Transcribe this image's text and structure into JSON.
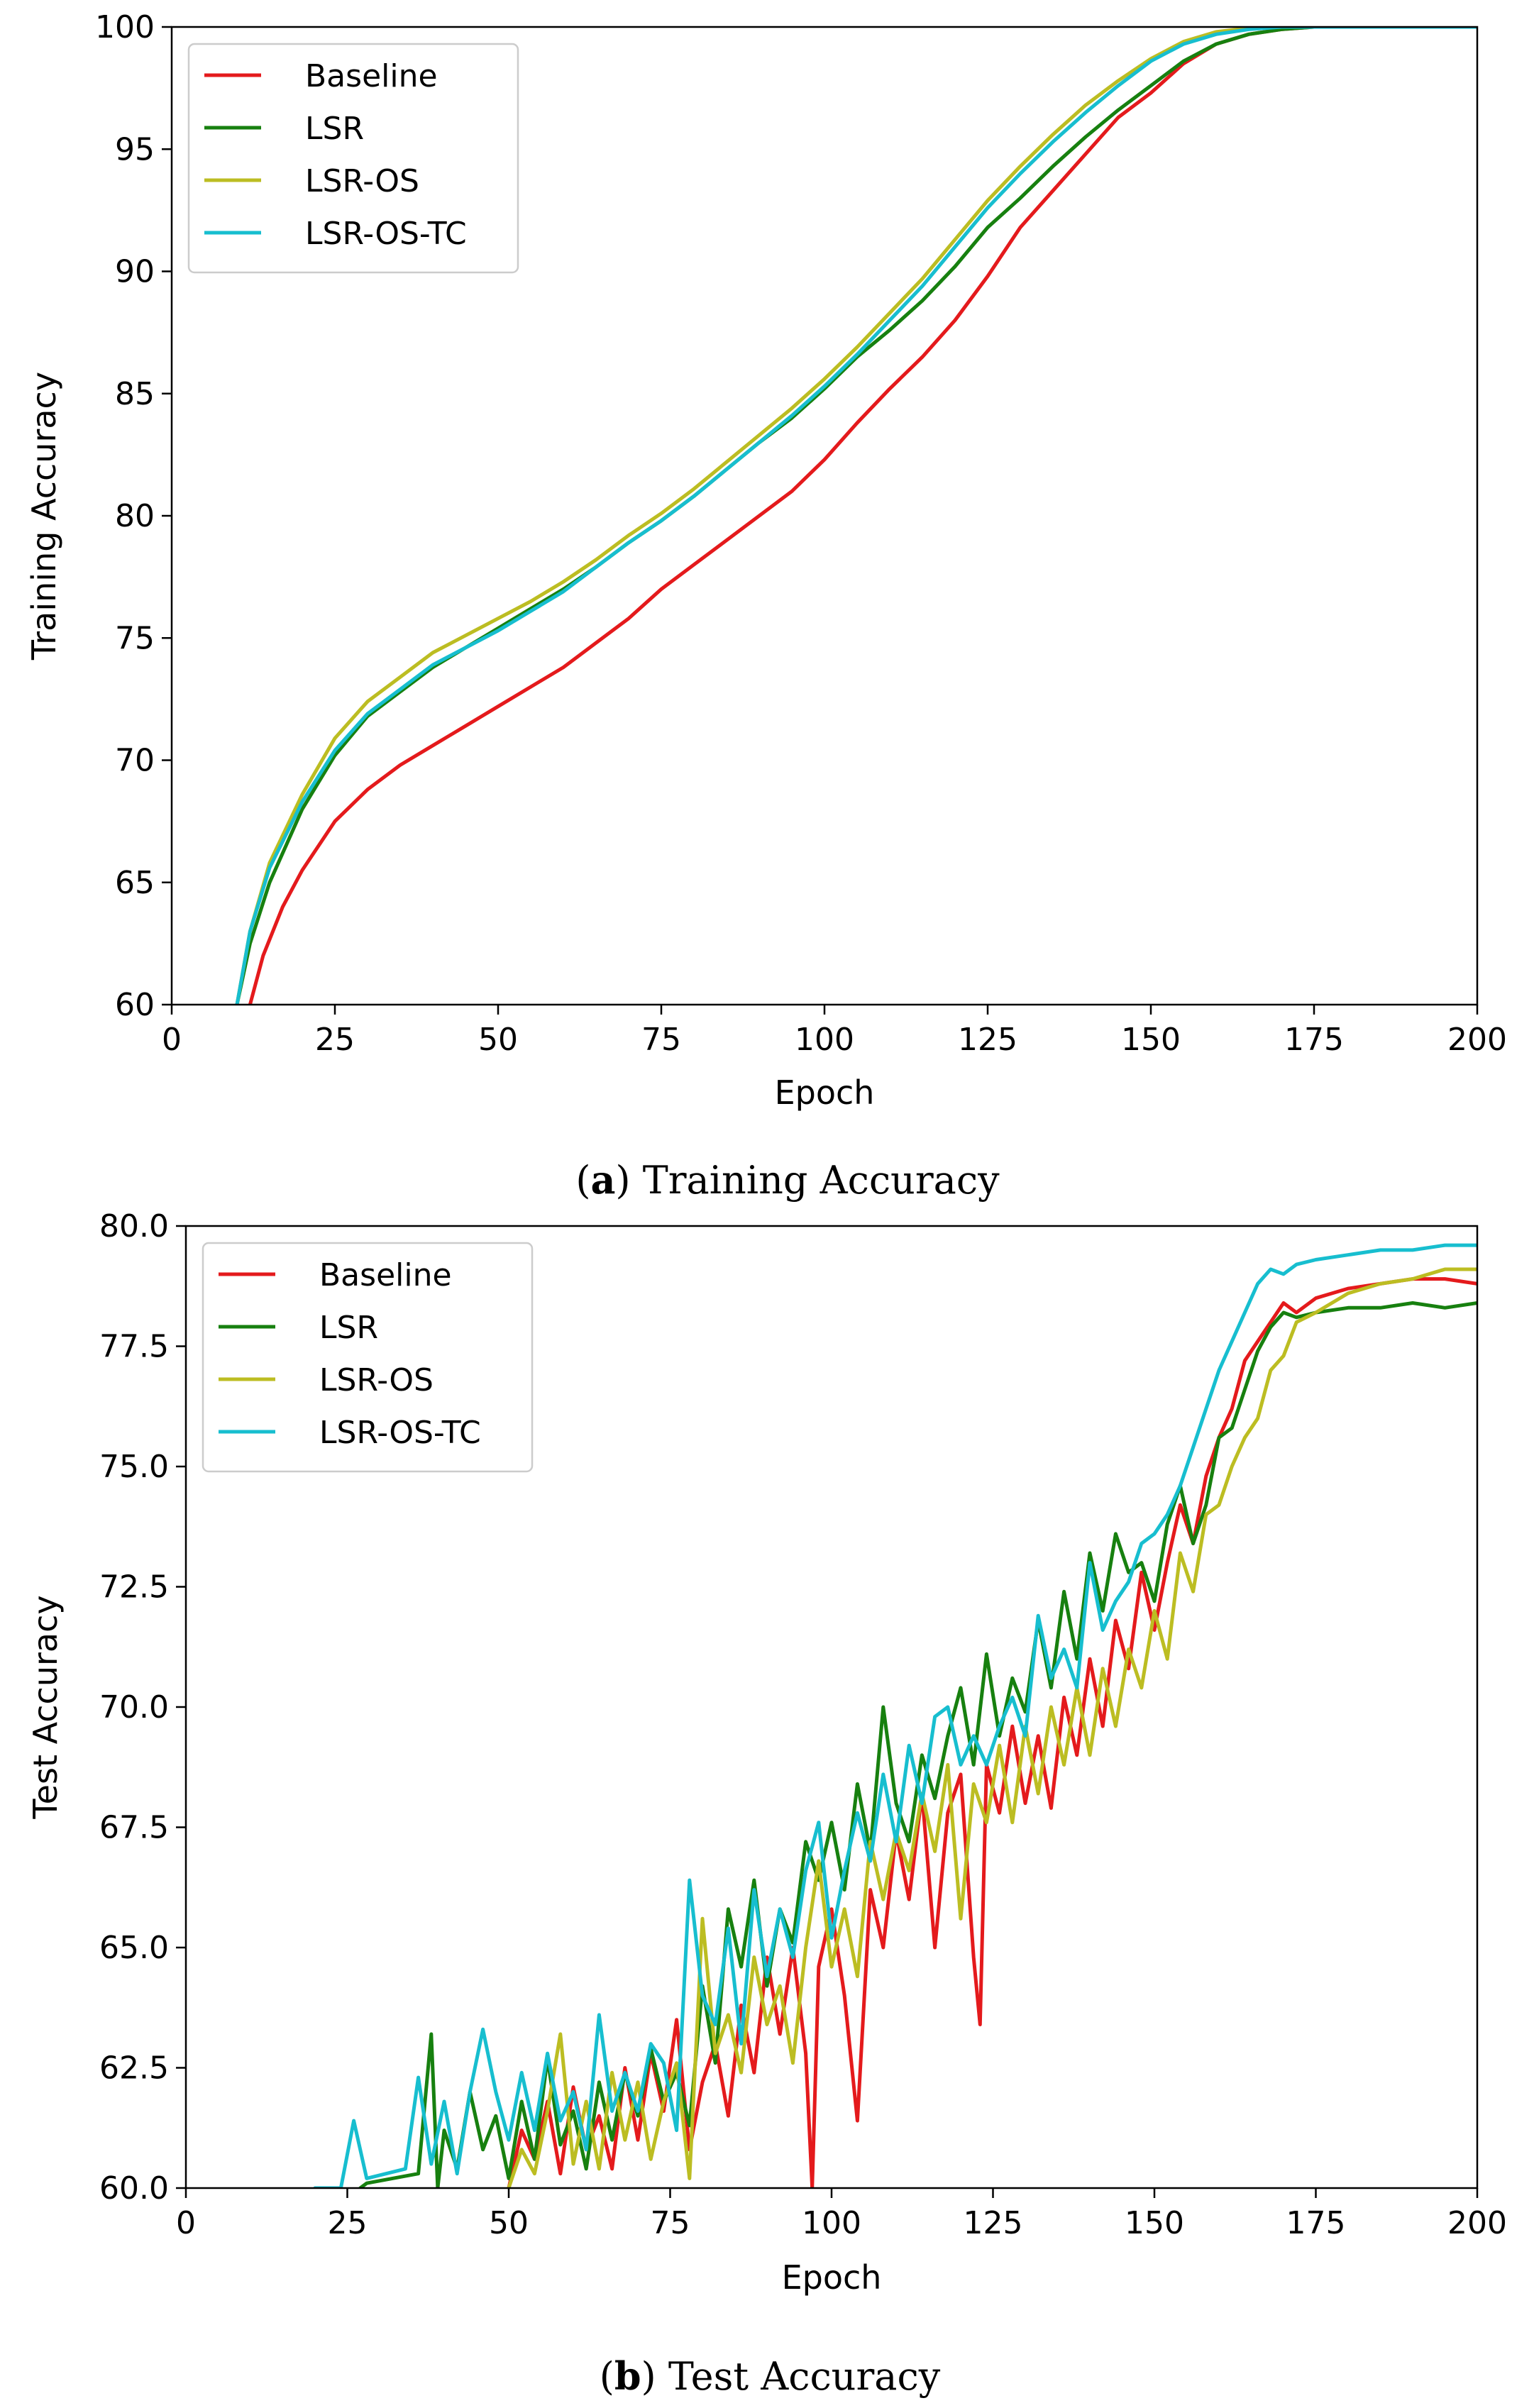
{
  "chart_data": [
    {
      "id": "a",
      "type": "line",
      "caption_letter": "a",
      "caption_text": "Training Accuracy",
      "xlabel": "Epoch",
      "ylabel": "Training Accuracy",
      "xlim": [
        0,
        200
      ],
      "ylim": [
        60,
        100
      ],
      "xticks": [
        "0",
        "25",
        "50",
        "75",
        "100",
        "125",
        "150",
        "175",
        "200"
      ],
      "yticks": [
        "60",
        "65",
        "70",
        "75",
        "80",
        "85",
        "90",
        "95",
        "100"
      ],
      "legend_position": "upper-left",
      "series": [
        {
          "name": "Baseline",
          "color": "#e41a1c",
          "x": [
            12,
            14,
            17,
            20,
            25,
            30,
            35,
            40,
            45,
            50,
            55,
            60,
            65,
            70,
            75,
            80,
            85,
            90,
            95,
            100,
            105,
            110,
            115,
            120,
            125,
            130,
            135,
            140,
            145,
            150,
            155,
            160,
            165,
            170,
            175,
            185,
            200
          ],
          "y": [
            60.0,
            62.0,
            64.0,
            65.5,
            67.5,
            68.8,
            69.8,
            70.6,
            71.4,
            72.2,
            73.0,
            73.8,
            74.8,
            75.8,
            77.0,
            78.0,
            79.0,
            80.0,
            81.0,
            82.3,
            83.8,
            85.2,
            86.5,
            88.0,
            89.8,
            91.8,
            93.3,
            94.8,
            96.3,
            97.3,
            98.5,
            99.3,
            99.7,
            99.9,
            100.0,
            100.0,
            100.0
          ]
        },
        {
          "name": "LSR",
          "color": "#17800f",
          "x": [
            10,
            12,
            15,
            20,
            25,
            30,
            35,
            40,
            45,
            50,
            55,
            60,
            65,
            70,
            75,
            80,
            85,
            90,
            95,
            100,
            105,
            110,
            115,
            120,
            125,
            130,
            135,
            140,
            145,
            150,
            155,
            160,
            165,
            170,
            175,
            185,
            200
          ],
          "y": [
            60.0,
            62.5,
            65.0,
            68.0,
            70.2,
            71.8,
            72.8,
            73.8,
            74.6,
            75.4,
            76.2,
            77.0,
            77.9,
            78.9,
            79.8,
            80.8,
            81.9,
            83.0,
            84.0,
            85.2,
            86.5,
            87.6,
            88.8,
            90.2,
            91.8,
            93.0,
            94.3,
            95.5,
            96.6,
            97.6,
            98.6,
            99.3,
            99.7,
            99.9,
            100.0,
            100.0,
            100.0
          ]
        },
        {
          "name": "LSR-OS",
          "color": "#bcbd22",
          "x": [
            10,
            12,
            15,
            20,
            25,
            30,
            35,
            40,
            45,
            50,
            55,
            60,
            65,
            70,
            75,
            80,
            85,
            90,
            95,
            100,
            105,
            110,
            115,
            120,
            125,
            130,
            135,
            140,
            145,
            150,
            155,
            160,
            165,
            170,
            175,
            185,
            200
          ],
          "y": [
            60.0,
            63.0,
            65.8,
            68.6,
            70.9,
            72.4,
            73.4,
            74.4,
            75.1,
            75.8,
            76.5,
            77.3,
            78.2,
            79.2,
            80.1,
            81.1,
            82.2,
            83.3,
            84.4,
            85.6,
            86.9,
            88.3,
            89.7,
            91.3,
            92.9,
            94.3,
            95.6,
            96.8,
            97.8,
            98.7,
            99.4,
            99.8,
            99.95,
            100.0,
            100.0,
            100.0,
            100.0
          ]
        },
        {
          "name": "LSR-OS-TC",
          "color": "#17becf",
          "x": [
            10,
            12,
            15,
            20,
            25,
            30,
            35,
            40,
            45,
            50,
            55,
            60,
            65,
            70,
            75,
            80,
            85,
            90,
            95,
            100,
            105,
            110,
            115,
            120,
            125,
            130,
            135,
            140,
            145,
            150,
            155,
            160,
            165,
            170,
            175,
            185,
            200
          ],
          "y": [
            60.0,
            63.0,
            65.6,
            68.3,
            70.4,
            71.9,
            72.9,
            73.9,
            74.6,
            75.3,
            76.1,
            76.9,
            77.9,
            78.9,
            79.8,
            80.8,
            81.9,
            83.0,
            84.1,
            85.3,
            86.6,
            88.0,
            89.4,
            91.0,
            92.6,
            94.0,
            95.3,
            96.5,
            97.6,
            98.6,
            99.3,
            99.7,
            99.9,
            100.0,
            100.0,
            100.0,
            100.0
          ]
        }
      ]
    },
    {
      "id": "b",
      "type": "line",
      "caption_letter": "b",
      "caption_text": "Test Accuracy",
      "xlabel": "Epoch",
      "ylabel": "Test Accuracy",
      "xlim": [
        0,
        200
      ],
      "ylim": [
        60,
        80
      ],
      "xticks": [
        "0",
        "25",
        "50",
        "75",
        "100",
        "125",
        "150",
        "175",
        "200"
      ],
      "yticks": [
        "60.0",
        "62.5",
        "65.0",
        "67.5",
        "70.0",
        "72.5",
        "75.0",
        "77.5",
        "80.0"
      ],
      "legend_position": "upper-left",
      "series": [
        {
          "name": "Baseline",
          "color": "#e41a1c",
          "x": [
            50,
            52,
            54,
            56,
            58,
            60,
            62,
            64,
            66,
            68,
            70,
            72,
            74,
            76,
            78,
            80,
            82,
            84,
            86,
            88,
            90,
            92,
            94,
            96,
            97,
            98,
            100,
            102,
            104,
            106,
            108,
            110,
            112,
            114,
            116,
            118,
            120,
            122,
            123,
            124,
            126,
            128,
            130,
            132,
            134,
            136,
            138,
            140,
            142,
            144,
            146,
            148,
            150,
            152,
            154,
            156,
            158,
            160,
            162,
            164,
            166,
            168,
            170,
            172,
            175,
            180,
            185,
            190,
            195,
            200
          ],
          "y": [
            60.0,
            61.2,
            60.6,
            61.8,
            60.3,
            62.1,
            60.8,
            61.5,
            60.4,
            62.5,
            61.0,
            62.8,
            61.6,
            63.5,
            60.8,
            62.2,
            63.0,
            61.5,
            63.8,
            62.4,
            64.8,
            63.2,
            65.0,
            62.8,
            60.0,
            64.6,
            65.8,
            64.0,
            61.4,
            66.2,
            65.0,
            67.4,
            66.0,
            68.2,
            65.0,
            67.8,
            68.6,
            64.8,
            63.4,
            68.8,
            67.8,
            69.6,
            68.0,
            69.4,
            67.9,
            70.2,
            69.0,
            71.0,
            69.6,
            71.8,
            70.8,
            72.8,
            71.6,
            73.0,
            74.2,
            73.4,
            74.8,
            75.6,
            76.2,
            77.2,
            77.6,
            78.0,
            78.4,
            78.2,
            78.5,
            78.7,
            78.8,
            78.9,
            78.9,
            78.8
          ]
        },
        {
          "name": "LSR",
          "color": "#17800f",
          "x": [
            27,
            28,
            36,
            38,
            39,
            40,
            42,
            44,
            46,
            48,
            50,
            52,
            54,
            56,
            58,
            60,
            62,
            64,
            66,
            68,
            70,
            72,
            74,
            76,
            78,
            80,
            82,
            84,
            86,
            88,
            90,
            92,
            94,
            96,
            98,
            100,
            102,
            104,
            106,
            108,
            110,
            112,
            114,
            116,
            118,
            120,
            122,
            124,
            126,
            128,
            130,
            132,
            134,
            136,
            138,
            140,
            142,
            144,
            146,
            148,
            150,
            152,
            154,
            156,
            158,
            160,
            162,
            164,
            166,
            168,
            170,
            172,
            175,
            180,
            185,
            190,
            195,
            200
          ],
          "y": [
            60.0,
            60.1,
            60.3,
            63.2,
            60.0,
            61.2,
            60.4,
            62.0,
            60.8,
            61.5,
            60.2,
            61.8,
            60.6,
            62.7,
            60.9,
            61.6,
            60.4,
            62.2,
            61.0,
            62.4,
            61.5,
            62.9,
            61.8,
            62.4,
            61.3,
            64.2,
            62.6,
            65.8,
            64.6,
            66.4,
            64.2,
            65.8,
            65.1,
            67.2,
            66.4,
            67.6,
            66.2,
            68.4,
            67.0,
            70.0,
            68.0,
            67.2,
            69.0,
            68.1,
            69.4,
            70.4,
            68.8,
            71.1,
            69.4,
            70.6,
            69.9,
            71.8,
            70.4,
            72.4,
            71.0,
            73.2,
            72.0,
            73.6,
            72.8,
            73.0,
            72.2,
            73.8,
            74.6,
            73.4,
            74.2,
            75.6,
            75.8,
            76.6,
            77.4,
            77.9,
            78.2,
            78.1,
            78.2,
            78.3,
            78.3,
            78.4,
            78.3,
            78.4
          ]
        },
        {
          "name": "LSR-OS",
          "color": "#bcbd22",
          "x": [
            50,
            52,
            54,
            56,
            58,
            60,
            62,
            64,
            66,
            68,
            70,
            72,
            74,
            76,
            78,
            80,
            82,
            84,
            86,
            88,
            90,
            92,
            94,
            96,
            98,
            100,
            102,
            104,
            106,
            108,
            110,
            112,
            114,
            116,
            118,
            120,
            122,
            124,
            126,
            128,
            130,
            132,
            134,
            136,
            138,
            140,
            142,
            144,
            146,
            148,
            150,
            152,
            154,
            156,
            158,
            160,
            162,
            164,
            166,
            168,
            170,
            172,
            175,
            180,
            185,
            190,
            195,
            200
          ],
          "y": [
            60.0,
            60.8,
            60.3,
            61.6,
            63.2,
            60.5,
            61.8,
            60.4,
            62.4,
            61.0,
            62.2,
            60.6,
            61.8,
            62.6,
            60.2,
            65.6,
            62.8,
            63.6,
            62.4,
            64.8,
            63.4,
            64.2,
            62.6,
            65.0,
            66.8,
            64.6,
            65.8,
            64.4,
            67.2,
            66.0,
            67.4,
            66.6,
            68.2,
            67.0,
            68.8,
            65.6,
            68.4,
            67.6,
            69.2,
            67.6,
            69.6,
            68.2,
            70.0,
            68.8,
            70.4,
            69.0,
            70.8,
            69.6,
            71.2,
            70.4,
            72.0,
            71.0,
            73.2,
            72.4,
            74.0,
            74.2,
            75.0,
            75.6,
            76.0,
            77.0,
            77.3,
            78.0,
            78.2,
            78.6,
            78.8,
            78.9,
            79.1,
            79.1
          ]
        },
        {
          "name": "LSR-OS-TC",
          "color": "#17becf",
          "x": [
            20,
            24,
            26,
            28,
            34,
            36,
            38,
            40,
            42,
            44,
            46,
            48,
            50,
            52,
            54,
            56,
            58,
            60,
            62,
            64,
            66,
            68,
            70,
            72,
            74,
            76,
            78,
            80,
            82,
            84,
            86,
            88,
            90,
            92,
            94,
            96,
            98,
            100,
            102,
            104,
            106,
            108,
            110,
            112,
            114,
            116,
            118,
            120,
            122,
            124,
            126,
            128,
            130,
            132,
            134,
            136,
            138,
            140,
            142,
            144,
            146,
            148,
            150,
            152,
            154,
            156,
            158,
            160,
            162,
            164,
            166,
            168,
            170,
            172,
            175,
            180,
            185,
            190,
            195,
            200
          ],
          "y": [
            60.0,
            60.0,
            61.4,
            60.2,
            60.4,
            62.3,
            60.5,
            61.8,
            60.3,
            62.0,
            63.3,
            62.0,
            61.0,
            62.4,
            61.2,
            62.8,
            61.4,
            62.0,
            60.8,
            63.6,
            61.6,
            62.4,
            61.6,
            63.0,
            62.6,
            61.2,
            66.4,
            64.0,
            63.4,
            65.4,
            63.0,
            66.2,
            64.4,
            65.8,
            64.8,
            66.6,
            67.6,
            65.2,
            66.6,
            67.8,
            66.8,
            68.6,
            67.2,
            69.2,
            68.0,
            69.8,
            70.0,
            68.8,
            69.4,
            68.8,
            69.6,
            70.2,
            69.4,
            71.9,
            70.6,
            71.2,
            70.4,
            73.0,
            71.6,
            72.2,
            72.6,
            73.4,
            73.6,
            74.0,
            74.6,
            75.4,
            76.2,
            77.0,
            77.6,
            78.2,
            78.8,
            79.1,
            79.0,
            79.2,
            79.3,
            79.4,
            79.5,
            79.5,
            79.6,
            79.6
          ]
        }
      ]
    }
  ]
}
